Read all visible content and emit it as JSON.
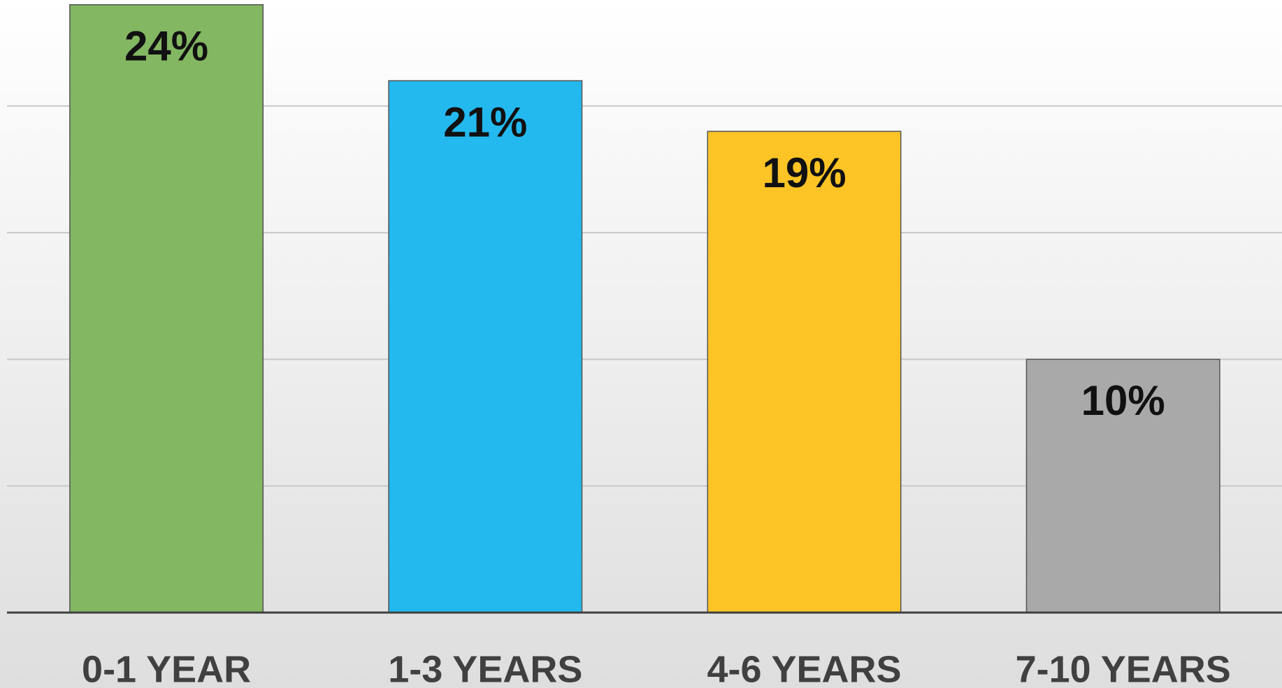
{
  "chart_data": {
    "type": "bar",
    "categories": [
      "0-1 YEAR",
      "1-3 YEARS",
      "4-6 YEARS",
      "7-10 YEARS"
    ],
    "values": [
      24,
      21,
      19,
      10
    ],
    "value_labels": [
      "24%",
      "21%",
      "19%",
      "10%"
    ],
    "colors": [
      "#83b762",
      "#23b9ef",
      "#fdc425",
      "#a9a9a9"
    ],
    "ylim": [
      0,
      25
    ],
    "yticks": [
      0,
      5,
      10,
      15,
      20
    ],
    "grid": true
  }
}
